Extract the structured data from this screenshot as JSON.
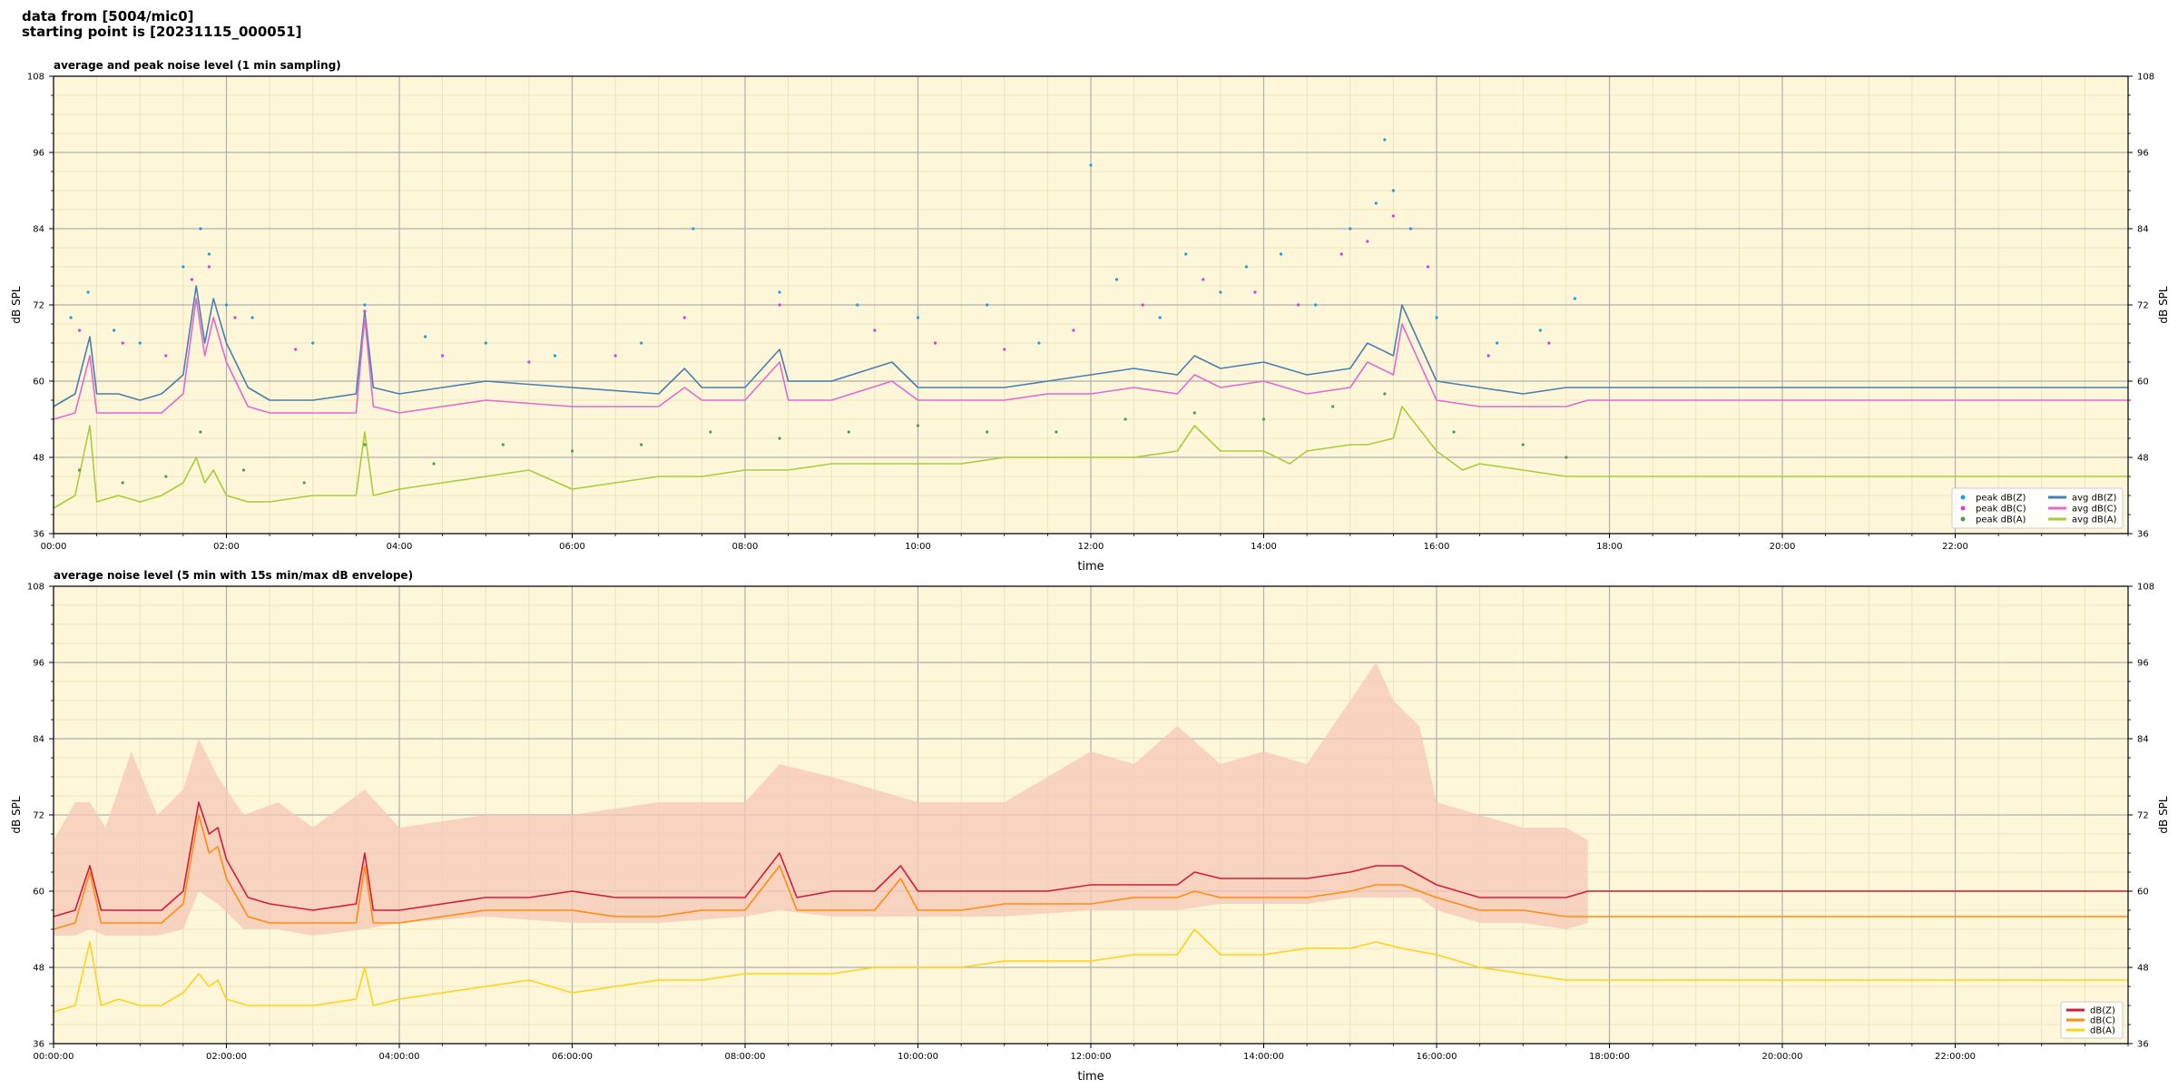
{
  "header": {
    "line1": "data from [5004/mic0]",
    "line2": "starting point is [20231115_000051]"
  },
  "chart_data": [
    {
      "type": "line",
      "title": "average and peak noise level (1 min sampling)",
      "xlabel": "time",
      "ylabel": "dB SPL",
      "ylabel_right": "dB SPL",
      "xlim": [
        0,
        24
      ],
      "ylim": [
        36,
        108
      ],
      "xticks": [
        "00:00",
        "02:00",
        "04:00",
        "06:00",
        "08:00",
        "10:00",
        "12:00",
        "14:00",
        "16:00",
        "18:00",
        "20:00",
        "22:00"
      ],
      "yticks": [
        36,
        48,
        60,
        72,
        84,
        96,
        108
      ],
      "grid": true,
      "data_end_hour": 17.75,
      "legend_position": "lower right",
      "legend": [
        {
          "label": "peak dB(Z)",
          "kind": "dot"
        },
        {
          "label": "avg dB(Z)",
          "kind": "line"
        },
        {
          "label": "peak dB(C)",
          "kind": "dot"
        },
        {
          "label": "avg dB(C)",
          "kind": "line"
        },
        {
          "label": "peak dB(A)",
          "kind": "dot"
        },
        {
          "label": "avg dB(A)",
          "kind": "line"
        }
      ],
      "series": [
        {
          "name": "avg dB(Z)",
          "color": "#4a7fb0",
          "kind": "line",
          "x": [
            0,
            0.25,
            0.42,
            0.5,
            0.75,
            1,
            1.25,
            1.5,
            1.65,
            1.75,
            1.85,
            2,
            2.25,
            2.5,
            3,
            3.5,
            3.6,
            3.7,
            4,
            4.5,
            5,
            6,
            7,
            7.3,
            7.5,
            8,
            8.4,
            8.5,
            9,
            9.7,
            10,
            11,
            11.5,
            12,
            12.5,
            13,
            13.2,
            13.5,
            14,
            14.5,
            15,
            15.2,
            15.5,
            15.6,
            16,
            16.5,
            17,
            17.5,
            17.75,
            24
          ],
          "y": [
            56,
            58,
            67,
            58,
            58,
            57,
            58,
            61,
            75,
            66,
            73,
            66,
            59,
            57,
            57,
            58,
            71,
            59,
            58,
            59,
            60,
            59,
            58,
            62,
            59,
            59,
            65,
            60,
            60,
            63,
            59,
            59,
            60,
            61,
            62,
            61,
            64,
            62,
            63,
            61,
            62,
            66,
            64,
            72,
            60,
            59,
            58,
            59,
            59,
            59
          ]
        },
        {
          "name": "avg dB(C)",
          "color": "#e06ad2",
          "kind": "line",
          "x": [
            0,
            0.25,
            0.42,
            0.5,
            0.75,
            1,
            1.25,
            1.5,
            1.65,
            1.75,
            1.85,
            2,
            2.25,
            2.5,
            3,
            3.5,
            3.6,
            3.7,
            4,
            4.5,
            5,
            6,
            7,
            7.3,
            7.5,
            8,
            8.4,
            8.5,
            9,
            9.7,
            10,
            11,
            11.5,
            12,
            12.5,
            13,
            13.2,
            13.5,
            14,
            14.5,
            15,
            15.2,
            15.5,
            15.6,
            16,
            16.5,
            17,
            17.5,
            17.75,
            24
          ],
          "y": [
            54,
            55,
            64,
            55,
            55,
            55,
            55,
            58,
            73,
            64,
            70,
            63,
            56,
            55,
            55,
            55,
            70,
            56,
            55,
            56,
            57,
            56,
            56,
            59,
            57,
            57,
            63,
            57,
            57,
            60,
            57,
            57,
            58,
            58,
            59,
            58,
            61,
            59,
            60,
            58,
            59,
            63,
            61,
            69,
            57,
            56,
            56,
            56,
            57,
            57
          ]
        },
        {
          "name": "avg dB(A)",
          "color": "#a9cc3c",
          "kind": "line",
          "x": [
            0,
            0.25,
            0.42,
            0.5,
            0.75,
            1,
            1.25,
            1.5,
            1.65,
            1.75,
            1.85,
            2,
            2.25,
            2.5,
            3,
            3.5,
            3.6,
            3.7,
            4,
            4.5,
            5,
            5.5,
            6,
            6.5,
            7,
            7.5,
            8,
            8.5,
            9,
            9.5,
            10,
            10.5,
            11,
            11.5,
            12,
            12.5,
            13,
            13.2,
            13.5,
            14,
            14.3,
            14.5,
            15,
            15.2,
            15.5,
            15.6,
            16,
            16.3,
            16.5,
            17,
            17.5,
            17.75,
            24
          ],
          "y": [
            40,
            42,
            53,
            41,
            42,
            41,
            42,
            44,
            48,
            44,
            46,
            42,
            41,
            41,
            42,
            42,
            52,
            42,
            43,
            44,
            45,
            46,
            43,
            44,
            45,
            45,
            46,
            46,
            47,
            47,
            47,
            47,
            48,
            48,
            48,
            48,
            49,
            53,
            49,
            49,
            47,
            49,
            50,
            50,
            51,
            56,
            49,
            46,
            47,
            46,
            45,
            45,
            45
          ]
        },
        {
          "name": "peak dB(Z)",
          "color": "#1c9fe0",
          "kind": "dot",
          "x": [
            0.2,
            0.4,
            0.7,
            1.0,
            1.5,
            1.7,
            1.8,
            2.0,
            2.3,
            3.0,
            3.6,
            4.3,
            5.0,
            5.8,
            6.8,
            7.4,
            8.4,
            9.3,
            10.0,
            10.8,
            11.4,
            12.0,
            12.3,
            12.8,
            13.1,
            13.5,
            13.8,
            14.2,
            14.6,
            15.0,
            15.3,
            15.4,
            15.5,
            15.7,
            16.0,
            16.7,
            17.2,
            17.6
          ],
          "y": [
            70,
            74,
            68,
            66,
            78,
            84,
            80,
            72,
            70,
            66,
            72,
            67,
            66,
            64,
            66,
            84,
            74,
            72,
            70,
            72,
            66,
            94,
            76,
            70,
            80,
            74,
            78,
            80,
            72,
            84,
            88,
            98,
            90,
            84,
            70,
            66,
            68,
            73
          ]
        },
        {
          "name": "peak dB(C)",
          "color": "#d33fd8",
          "kind": "dot",
          "x": [
            0.3,
            0.8,
            1.3,
            1.6,
            1.8,
            2.1,
            2.8,
            3.6,
            4.5,
            5.5,
            6.5,
            7.3,
            8.4,
            9.5,
            10.2,
            11.0,
            11.8,
            12.6,
            13.3,
            13.9,
            14.4,
            14.9,
            15.2,
            15.5,
            15.9,
            16.6,
            17.3
          ],
          "y": [
            68,
            66,
            64,
            76,
            78,
            70,
            65,
            71,
            64,
            63,
            64,
            70,
            72,
            68,
            66,
            65,
            68,
            72,
            76,
            74,
            72,
            80,
            82,
            86,
            78,
            64,
            66
          ]
        },
        {
          "name": "peak dB(A)",
          "color": "#4f9e4f",
          "kind": "dot",
          "x": [
            0.3,
            0.8,
            1.3,
            1.7,
            2.2,
            2.9,
            3.6,
            4.4,
            5.2,
            6.0,
            6.8,
            7.6,
            8.4,
            9.2,
            10.0,
            10.8,
            11.6,
            12.4,
            13.2,
            14.0,
            14.8,
            15.4,
            16.2,
            17.0,
            17.5
          ],
          "y": [
            46,
            44,
            45,
            52,
            46,
            44,
            50,
            47,
            50,
            49,
            50,
            52,
            51,
            52,
            53,
            52,
            52,
            54,
            55,
            54,
            56,
            58,
            52,
            50,
            48
          ]
        }
      ]
    },
    {
      "type": "line",
      "title": "average noise level (5 min with 15s min/max dB envelope)",
      "xlabel": "time",
      "ylabel": "dB SPL",
      "ylabel_right": "dB SPL",
      "xlim": [
        0,
        24
      ],
      "ylim": [
        36,
        108
      ],
      "xticks": [
        "00:00:00",
        "02:00:00",
        "04:00:00",
        "06:00:00",
        "08:00:00",
        "10:00:00",
        "12:00:00",
        "14:00:00",
        "16:00:00",
        "18:00:00",
        "20:00:00",
        "22:00:00"
      ],
      "yticks": [
        36,
        48,
        60,
        72,
        84,
        96,
        108
      ],
      "grid": true,
      "data_end_hour": 17.75,
      "legend_position": "lower right",
      "legend": [
        {
          "label": "dB(Z)",
          "kind": "line"
        },
        {
          "label": "dB(C)",
          "kind": "line"
        },
        {
          "label": "dB(A)",
          "kind": "line"
        }
      ],
      "envelope": {
        "color": "#f6c8b8",
        "x": [
          0,
          0.25,
          0.42,
          0.6,
          0.9,
          1.2,
          1.5,
          1.68,
          1.9,
          2.2,
          2.6,
          3.0,
          3.6,
          4.0,
          5.0,
          6.0,
          7.0,
          8.0,
          8.4,
          9.0,
          10.0,
          11.0,
          12.0,
          12.5,
          13.0,
          13.5,
          14.0,
          14.5,
          15.0,
          15.3,
          15.5,
          15.8,
          16.0,
          16.5,
          17.0,
          17.5,
          17.75
        ],
        "max": [
          68,
          74,
          74,
          70,
          82,
          72,
          76,
          84,
          78,
          72,
          74,
          70,
          76,
          70,
          72,
          72,
          74,
          74,
          80,
          78,
          74,
          74,
          82,
          80,
          86,
          80,
          82,
          80,
          90,
          96,
          90,
          86,
          74,
          72,
          70,
          70,
          68
        ],
        "min": [
          53,
          53,
          54,
          53,
          53,
          53,
          54,
          60,
          58,
          54,
          54,
          53,
          54,
          55,
          56,
          55,
          55,
          56,
          57,
          56,
          56,
          56,
          57,
          57,
          57,
          58,
          58,
          58,
          59,
          59,
          59,
          59,
          57,
          55,
          55,
          54,
          55
        ]
      },
      "series": [
        {
          "name": "dB(Z)",
          "color": "#d01c3c",
          "kind": "line",
          "x": [
            0,
            0.25,
            0.42,
            0.55,
            0.75,
            1,
            1.25,
            1.5,
            1.68,
            1.8,
            1.9,
            2,
            2.25,
            2.5,
            3,
            3.5,
            3.6,
            3.7,
            4,
            4.5,
            5,
            5.5,
            6,
            6.5,
            7,
            7.5,
            8,
            8.4,
            8.6,
            9,
            9.5,
            9.8,
            10,
            10.5,
            11,
            11.5,
            12,
            12.5,
            13,
            13.2,
            13.5,
            14,
            14.5,
            15,
            15.3,
            15.6,
            16,
            16.5,
            17,
            17.5,
            17.75,
            24
          ],
          "y": [
            56,
            57,
            64,
            57,
            57,
            57,
            57,
            60,
            74,
            69,
            70,
            65,
            59,
            58,
            57,
            58,
            66,
            57,
            57,
            58,
            59,
            59,
            60,
            59,
            59,
            59,
            59,
            66,
            59,
            60,
            60,
            64,
            60,
            60,
            60,
            60,
            61,
            61,
            61,
            63,
            62,
            62,
            62,
            63,
            64,
            64,
            61,
            59,
            59,
            59,
            60,
            60
          ]
        },
        {
          "name": "dB(C)",
          "color": "#ff8c10",
          "kind": "line",
          "x": [
            0,
            0.25,
            0.42,
            0.55,
            0.75,
            1,
            1.25,
            1.5,
            1.68,
            1.8,
            1.9,
            2,
            2.25,
            2.5,
            3,
            3.5,
            3.6,
            3.7,
            4,
            4.5,
            5,
            5.5,
            6,
            6.5,
            7,
            7.5,
            8,
            8.4,
            8.6,
            9,
            9.5,
            9.8,
            10,
            10.5,
            11,
            11.5,
            12,
            12.5,
            13,
            13.2,
            13.5,
            14,
            14.5,
            15,
            15.3,
            15.6,
            16,
            16.5,
            17,
            17.5,
            17.75,
            24
          ],
          "y": [
            54,
            55,
            63,
            55,
            55,
            55,
            55,
            58,
            72,
            66,
            67,
            62,
            56,
            55,
            55,
            55,
            64,
            55,
            55,
            56,
            57,
            57,
            57,
            56,
            56,
            57,
            57,
            64,
            57,
            57,
            57,
            62,
            57,
            57,
            58,
            58,
            58,
            59,
            59,
            60,
            59,
            59,
            59,
            60,
            61,
            61,
            59,
            57,
            57,
            56,
            56,
            56
          ]
        },
        {
          "name": "dB(A)",
          "color": "#ffd21a",
          "kind": "line",
          "x": [
            0,
            0.25,
            0.42,
            0.55,
            0.75,
            1,
            1.25,
            1.5,
            1.68,
            1.8,
            1.9,
            2,
            2.25,
            2.5,
            3,
            3.5,
            3.6,
            3.7,
            4,
            4.5,
            5,
            5.5,
            6,
            6.5,
            7,
            7.5,
            8,
            8.5,
            9,
            9.5,
            10,
            10.5,
            11,
            11.5,
            12,
            12.5,
            13,
            13.2,
            13.5,
            14,
            14.5,
            15,
            15.3,
            15.6,
            16,
            16.5,
            17,
            17.5,
            17.75,
            24
          ],
          "y": [
            41,
            42,
            52,
            42,
            43,
            42,
            42,
            44,
            47,
            45,
            46,
            43,
            42,
            42,
            42,
            43,
            48,
            42,
            43,
            44,
            45,
            46,
            44,
            45,
            46,
            46,
            47,
            47,
            47,
            48,
            48,
            48,
            49,
            49,
            49,
            50,
            50,
            54,
            50,
            50,
            51,
            51,
            52,
            51,
            50,
            48,
            47,
            46,
            46,
            46
          ]
        }
      ]
    }
  ]
}
